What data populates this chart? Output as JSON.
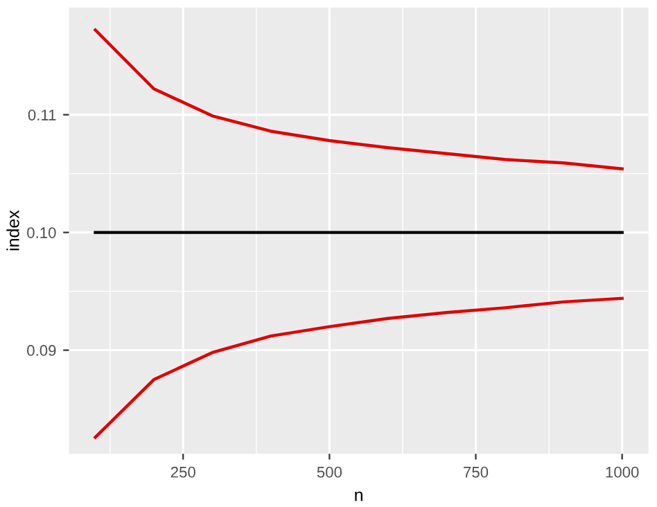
{
  "chart_data": {
    "type": "line",
    "xlabel": "n",
    "ylabel": "index",
    "x": [
      100,
      200,
      300,
      400,
      500,
      600,
      700,
      800,
      900,
      1000
    ],
    "series": [
      {
        "color": "#e00000",
        "values": [
          0.1172,
          0.1122,
          0.1099,
          0.1086,
          0.1078,
          0.1072,
          0.1067,
          0.1062,
          0.1059,
          0.1054
        ]
      },
      {
        "color": "#000000",
        "values": [
          0.1,
          0.1,
          0.1,
          0.1,
          0.1,
          0.1,
          0.1,
          0.1,
          0.1,
          0.1
        ]
      },
      {
        "color": "#e00000",
        "values": [
          0.0826,
          0.0875,
          0.0898,
          0.0912,
          0.092,
          0.0927,
          0.0932,
          0.0936,
          0.0941,
          0.0944
        ]
      }
    ],
    "xlim": [
      55,
      1045
    ],
    "ylim": [
      0.0812,
      0.1191
    ],
    "xticks": [
      250,
      500,
      750,
      1000
    ],
    "yticks": [
      {
        "value": 0.09,
        "label": "0.09"
      },
      {
        "value": 0.1,
        "label": "0.10"
      },
      {
        "value": 0.11,
        "label": "0.11"
      }
    ],
    "grid": true,
    "marker": "none",
    "line_style": "solid"
  }
}
